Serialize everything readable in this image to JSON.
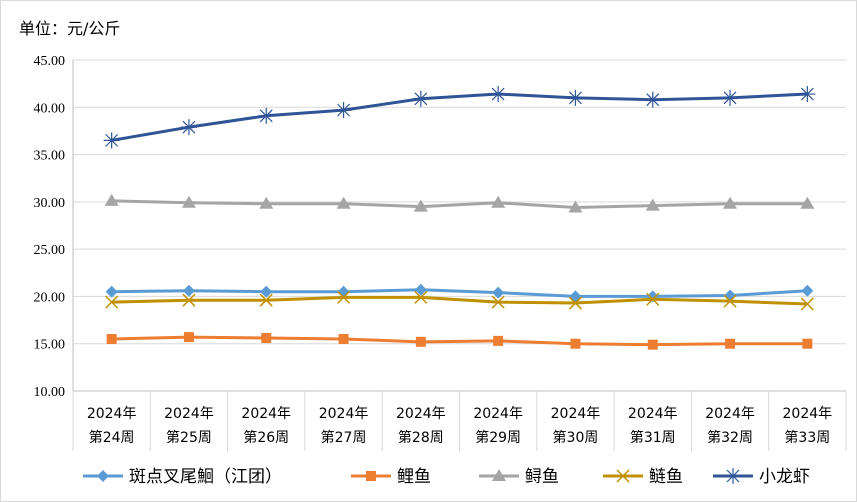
{
  "chart_data": {
    "type": "line",
    "unit_label": "单位：元/公斤",
    "categories": [
      [
        "2024年",
        "第24周"
      ],
      [
        "2024年",
        "第25周"
      ],
      [
        "2024年",
        "第26周"
      ],
      [
        "2024年",
        "第27周"
      ],
      [
        "2024年",
        "第28周"
      ],
      [
        "2024年",
        "第29周"
      ],
      [
        "2024年",
        "第30周"
      ],
      [
        "2024年",
        "第31周"
      ],
      [
        "2024年",
        "第32周"
      ],
      [
        "2024年",
        "第33周"
      ]
    ],
    "ylim": [
      10,
      45
    ],
    "yticks": [
      "10.00",
      "15.00",
      "20.00",
      "25.00",
      "30.00",
      "35.00",
      "40.00",
      "45.00"
    ],
    "grid": true,
    "legend_position": "bottom",
    "series": [
      {
        "name": "斑点叉尾鮰（江团）",
        "color": "#5b9bd5",
        "marker": "diamond",
        "values": [
          20.5,
          20.6,
          20.5,
          20.5,
          20.7,
          20.4,
          20.0,
          20.0,
          20.1,
          20.6
        ]
      },
      {
        "name": "鲤鱼",
        "color": "#ed7d31",
        "marker": "square",
        "values": [
          15.5,
          15.7,
          15.6,
          15.5,
          15.2,
          15.3,
          15.0,
          14.9,
          15.0,
          15.0
        ]
      },
      {
        "name": "鲟鱼",
        "color": "#a5a5a5",
        "marker": "triangle",
        "values": [
          30.1,
          29.9,
          29.8,
          29.8,
          29.5,
          29.9,
          29.4,
          29.6,
          29.8,
          29.8
        ]
      },
      {
        "name": "鲢鱼",
        "color": "#bf9000",
        "marker": "x",
        "values": [
          19.4,
          19.6,
          19.6,
          19.9,
          19.9,
          19.4,
          19.3,
          19.7,
          19.5,
          19.2
        ]
      },
      {
        "name": "小龙虾",
        "color": "#2f5597",
        "marker": "star",
        "values": [
          36.5,
          37.9,
          39.1,
          39.7,
          40.9,
          41.4,
          41.0,
          40.8,
          41.0,
          41.4
        ]
      }
    ]
  }
}
